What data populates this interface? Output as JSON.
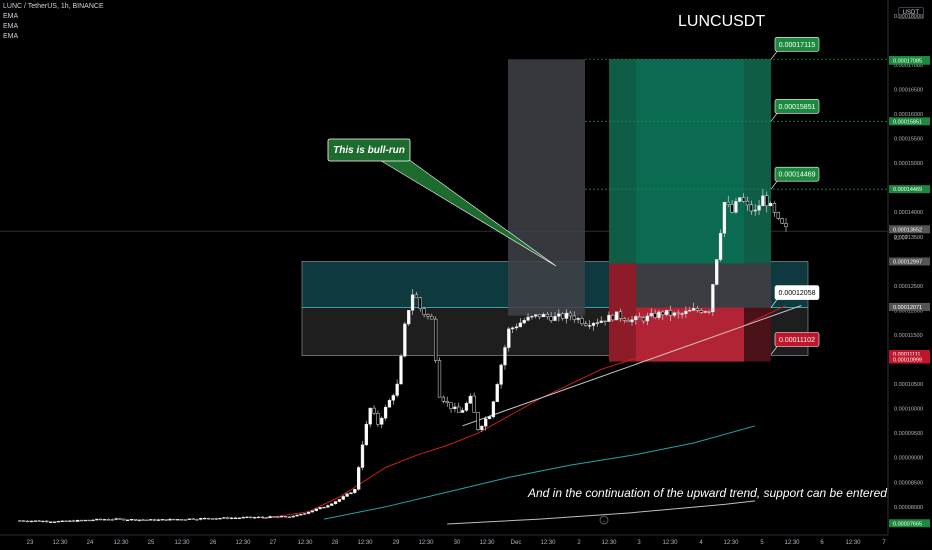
{
  "header": {
    "symbol_line": "LUNC / TetherUS, 1h, BINANCE",
    "indicators": [
      "EMA",
      "EMA",
      "EMA"
    ]
  },
  "title": "LUNCUSDT",
  "unit": "USDT",
  "colors": {
    "background": "#000000",
    "up_candle": "#ffffff",
    "down_candle": "#000000",
    "ema_red": "#cc1f1f",
    "ema_teal": "#1fa6a6",
    "ema_white": "#bfbfbf",
    "trendline": "#c8c8c8",
    "target_green": "#1b8a3e",
    "stop_red": "#c0152a",
    "zone_teal": "#0e3a3f",
    "zone_gray": "#1e1e1e",
    "highlight_gray": "#404248",
    "callout_green": "#1e6b2e"
  },
  "annotations": {
    "bull_run": "This is bull-run",
    "note": "And in the continuation of the upward trend, support can be entered."
  },
  "callouts": {
    "tp3": "0.00017115",
    "tp2": "0.00015851",
    "tp1": "0.00014469",
    "entry": "0.00012058",
    "stop": "0.00011102"
  },
  "chart_data": {
    "type": "candlestick",
    "title": "LUNCUSDT",
    "xlabel": "",
    "ylabel": "",
    "ylim": [
      7.65e-05,
      0.000182
    ],
    "x_ticks": [
      "23",
      "12:30",
      "24",
      "12:30",
      "25",
      "12:30",
      "26",
      "12:30",
      "27",
      "12:30",
      "28",
      "12:30",
      "29",
      "12:30",
      "30",
      "12:30",
      "Dec",
      "12:30",
      "2",
      "12:30",
      "3",
      "12:30",
      "4",
      "12:30",
      "5",
      "12:30",
      "6",
      "12:30",
      "7"
    ],
    "y_ticks": [
      "0.00018000",
      "0.00017100",
      "0.00017000",
      "0.00016500",
      "0.00016000",
      "0.00015500",
      "0.00015000",
      "0.00014500",
      "0.00014000",
      "0.00013500",
      "0.00013000",
      "0.00012500",
      "0.00012000",
      "0.00011500",
      "0.00011000",
      "0.00010500",
      "0.00010000",
      "0.00009500",
      "0.00009000",
      "0.00008500",
      "0.00008000",
      "0.00007500"
    ],
    "price_labels": [
      {
        "value": "0.00017100",
        "color": "#1b8a3e"
      },
      {
        "value": "0.00017085",
        "color": "#1b8a3e"
      },
      {
        "value": "0.00015851",
        "color": "#1b8a3e"
      },
      {
        "value": "0.00014469",
        "color": "#1b8a3e"
      },
      {
        "value": "0.00013652",
        "color": "#555555"
      },
      {
        "value": "0.00012997",
        "color": "#555555"
      },
      {
        "value": "0.00012071",
        "color": "#555555"
      },
      {
        "value": "0.00011111",
        "color": "#c0152a"
      },
      {
        "value": "0.00010999",
        "color": "#c0152a"
      },
      {
        "value": "0.00007665",
        "color": "#1b8a3e"
      }
    ],
    "countdown": "22:07",
    "levels": {
      "tp3": 0.00017115,
      "tp2": 0.00015851,
      "tp1": 0.00014469,
      "zone_top": 0.00012997,
      "entry": 0.00012058,
      "stop": 0.00011102,
      "zone_bottom": 0.0001108,
      "last": 0.00013652
    },
    "close_path": [
      [
        0,
        7.72e-05
      ],
      [
        3,
        7.7e-05
      ],
      [
        6,
        7.75e-05
      ],
      [
        9,
        7.73e-05
      ],
      [
        12,
        7.76e-05
      ],
      [
        15,
        7.78e-05
      ],
      [
        18,
        7.8e-05
      ],
      [
        19,
        7.9e-05
      ],
      [
        20,
        8e-05
      ],
      [
        21,
        8.15e-05
      ],
      [
        22,
        8.35e-05
      ],
      [
        22.5,
        9.3e-05
      ],
      [
        23,
        0.0001
      ],
      [
        23.5,
        9.7e-05
      ],
      [
        24,
        0.0001
      ],
      [
        24.8,
        0.000105
      ],
      [
        25.3,
        0.000118
      ],
      [
        25.8,
        0.000124
      ],
      [
        26.3,
        0.00012
      ],
      [
        27,
        0.000118
      ],
      [
        27.5,
        0.000103
      ],
      [
        28,
        0.000101
      ],
      [
        28.8,
        9.9e-05
      ],
      [
        29.5,
        0.000102
      ],
      [
        30,
        9.6e-05
      ],
      [
        30.8,
        9.9e-05
      ],
      [
        31.5,
        0.000109
      ],
      [
        32,
        0.000116
      ],
      [
        33,
        0.000118
      ],
      [
        34,
        0.000119
      ],
      [
        35,
        0.0001185
      ],
      [
        36,
        0.000119
      ],
      [
        37,
        0.0001175
      ],
      [
        38,
        0.000118
      ],
      [
        39,
        0.000119
      ],
      [
        40,
        0.000118
      ],
      [
        41,
        0.0001185
      ],
      [
        42,
        0.0001195
      ],
      [
        43,
        0.000119
      ],
      [
        44,
        0.00012
      ],
      [
        45,
        0.0001202
      ],
      [
        45.6,
        0.000133
      ],
      [
        46,
        0.000142
      ],
      [
        46.5,
        0.00014
      ],
      [
        47,
        0.000143
      ],
      [
        47.5,
        0.000141
      ],
      [
        48,
        0.00014
      ],
      [
        48.5,
        0.000143
      ],
      [
        49,
        0.000141
      ],
      [
        49.5,
        0.000138
      ],
      [
        50,
        0.0001365
      ]
    ],
    "ema_series": [
      {
        "color": "#cc1f1f",
        "points": [
          [
            16,
            7.76e-05
          ],
          [
            19,
            7.9e-05
          ],
          [
            21,
            8.2e-05
          ],
          [
            24,
            8.8e-05
          ],
          [
            26,
            9.05e-05
          ],
          [
            28,
            9.25e-05
          ],
          [
            30,
            9.5e-05
          ],
          [
            32,
            9.85e-05
          ],
          [
            34,
            0.000102
          ],
          [
            36,
            0.000105
          ],
          [
            38,
            0.000108
          ],
          [
            40,
            0.00011
          ],
          [
            42,
            0.0001115
          ],
          [
            44,
            0.000113
          ],
          [
            46,
            0.000115
          ],
          [
            48,
            0.000118
          ],
          [
            50,
            0.000121
          ]
        ]
      },
      {
        "color": "#1fa6a6",
        "points": [
          [
            20,
            7.75e-05
          ],
          [
            24,
            8e-05
          ],
          [
            28,
            8.3e-05
          ],
          [
            32,
            8.6e-05
          ],
          [
            36,
            8.85e-05
          ],
          [
            40,
            9.05e-05
          ],
          [
            44,
            9.3e-05
          ],
          [
            48,
            9.65e-05
          ]
        ]
      },
      {
        "color": "#bfbfbf",
        "points": [
          [
            28,
            7.65e-05
          ],
          [
            34,
            7.75e-05
          ],
          [
            40,
            7.88e-05
          ],
          [
            46,
            8.05e-05
          ],
          [
            48,
            8.12e-05
          ]
        ]
      }
    ],
    "trendline": [
      [
        29,
        9.65e-05
      ],
      [
        51,
        0.000121
      ]
    ]
  }
}
